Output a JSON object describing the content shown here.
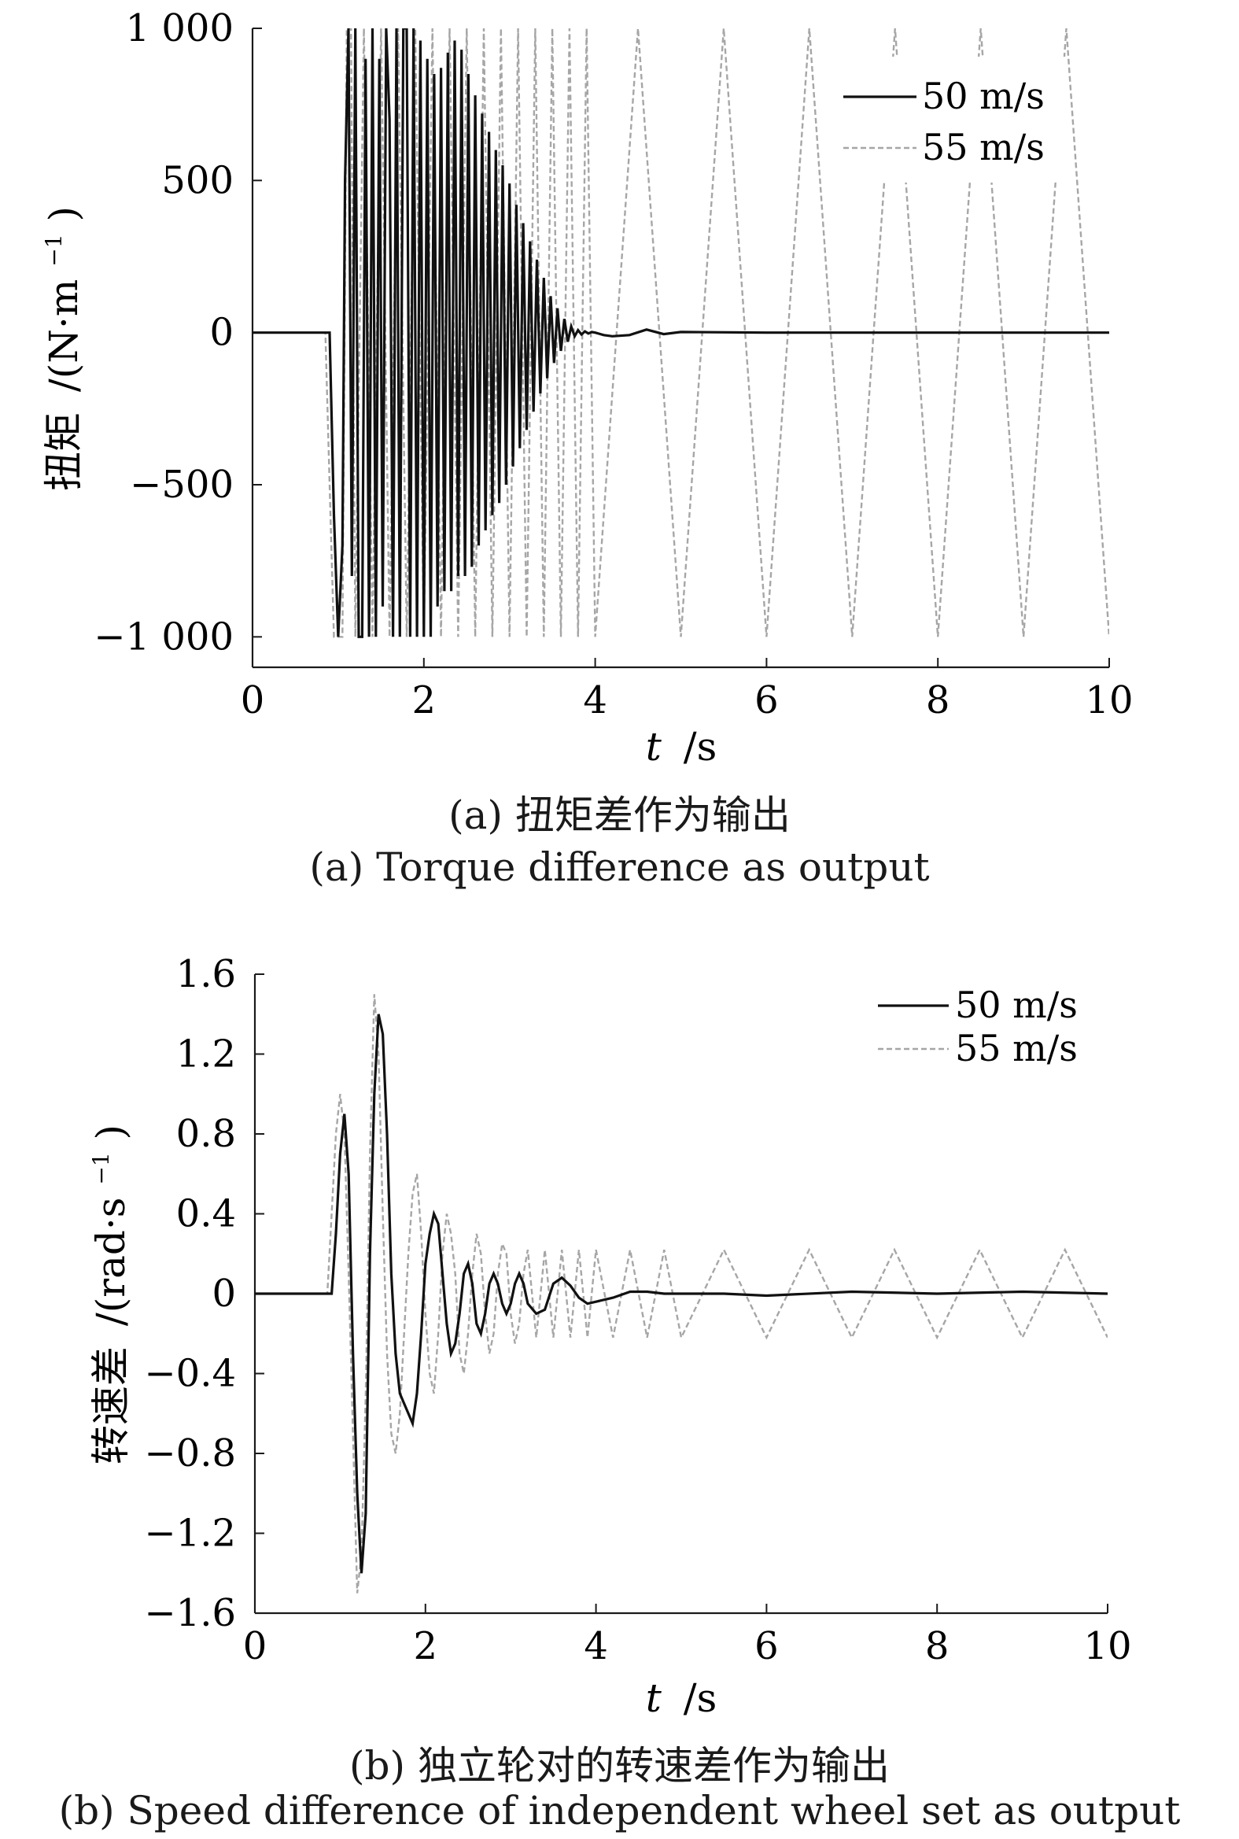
{
  "chart_data": [
    {
      "type": "line",
      "caption_cn": "(a) 扭矩差作为输出",
      "caption_en": "(a) Torque difference as output",
      "xlabel_var": "t",
      "xlabel_unit": "/s",
      "ylabel_cn": "扭矩",
      "ylabel_unit": "/(N·m",
      "ylabel_sup": "−1",
      "ylabel_close": ")",
      "xlim": [
        0,
        10
      ],
      "ylim": [
        -1100,
        1000
      ],
      "xticks": [
        0,
        2,
        4,
        6,
        8,
        10
      ],
      "xtick_labels": [
        "0",
        "2",
        "4",
        "6",
        "8",
        "10"
      ],
      "yticks": [
        1000,
        500,
        0,
        -500,
        -1000
      ],
      "ytick_labels": [
        "1 000",
        "500",
        "0",
        "−500",
        "−1 000"
      ],
      "grid": false,
      "legend_position": "top-right",
      "series": [
        {
          "name": "50 m/s",
          "style": "solid",
          "color": "#111111",
          "x": [
            0,
            0.9,
            0.95,
            1.0,
            1.05,
            1.08,
            1.12,
            1.16,
            1.2,
            1.24,
            1.28,
            1.32,
            1.36,
            1.4,
            1.44,
            1.48,
            1.52,
            1.56,
            1.6,
            1.64,
            1.68,
            1.72,
            1.76,
            1.8,
            1.84,
            1.88,
            1.92,
            1.96,
            2.0,
            2.04,
            2.08,
            2.12,
            2.16,
            2.2,
            2.24,
            2.28,
            2.32,
            2.36,
            2.4,
            2.44,
            2.48,
            2.52,
            2.56,
            2.6,
            2.64,
            2.68,
            2.72,
            2.76,
            2.8,
            2.84,
            2.88,
            2.92,
            2.96,
            3.0,
            3.04,
            3.08,
            3.12,
            3.16,
            3.2,
            3.24,
            3.28,
            3.32,
            3.36,
            3.4,
            3.44,
            3.48,
            3.52,
            3.56,
            3.6,
            3.64,
            3.68,
            3.72,
            3.76,
            3.8,
            3.84,
            3.88,
            3.92,
            3.96,
            4.0,
            4.1,
            4.2,
            4.4,
            4.6,
            4.8,
            5.0,
            6.0,
            8.0,
            10.0
          ],
          "y": [
            0,
            0,
            -600,
            -1000,
            -700,
            500,
            1000,
            -800,
            1000,
            -1000,
            -1000,
            900,
            -1000,
            1000,
            -1000,
            900,
            -900,
            1000,
            700,
            -1000,
            1000,
            -1000,
            1000,
            1000,
            -1000,
            1000,
            -1000,
            960,
            -1000,
            900,
            -1000,
            850,
            -900,
            870,
            -850,
            920,
            -850,
            960,
            -800,
            930,
            -800,
            850,
            -770,
            780,
            -700,
            720,
            -650,
            660,
            -600,
            600,
            -560,
            550,
            -500,
            490,
            -440,
            420,
            -380,
            360,
            -320,
            300,
            -260,
            240,
            -200,
            180,
            -150,
            120,
            -100,
            80,
            -60,
            45,
            -30,
            20,
            -12,
            8,
            -6,
            4,
            -3,
            2,
            0,
            -8,
            -12,
            -8,
            10,
            -5,
            2,
            0,
            0,
            0
          ]
        },
        {
          "name": "55 m/s",
          "style": "dashed",
          "color": "#a6a6a6",
          "x": [
            0,
            0.85,
            0.9,
            0.95,
            1.05,
            1.1,
            1.15,
            1.2,
            1.3,
            1.4,
            1.5,
            1.6,
            1.7,
            1.8,
            1.9,
            2.0,
            2.1,
            2.2,
            2.3,
            2.4,
            2.5,
            2.6,
            2.7,
            2.8,
            2.9,
            3.0,
            3.1,
            3.2,
            3.3,
            3.4,
            3.5,
            3.6,
            3.7,
            3.8,
            3.9,
            4.0,
            4.5,
            5.0,
            5.5,
            6.0,
            6.5,
            7.0,
            7.5,
            8.0,
            8.5,
            9.0,
            9.5,
            10.0
          ],
          "y": [
            0,
            0,
            -500,
            -1000,
            -1000,
            1000,
            1000,
            -1000,
            1000,
            -1000,
            1000,
            -1000,
            1000,
            -1000,
            1000,
            -1000,
            1000,
            -1000,
            1000,
            -1000,
            1000,
            -1000,
            1000,
            -1000,
            1000,
            -1000,
            1000,
            -1000,
            1000,
            -1000,
            1000,
            -1000,
            1000,
            -1000,
            1000,
            -1000,
            1000,
            -1000,
            1000,
            -1000,
            1000,
            -1000,
            1000,
            -1000,
            1000,
            -1000,
            1000,
            -1000
          ]
        }
      ]
    },
    {
      "type": "line",
      "caption_cn": "(b) 独立轮对的转速差作为输出",
      "caption_en": "(b) Speed difference of independent wheel set as output",
      "xlabel_var": "t",
      "xlabel_unit": "/s",
      "ylabel_cn": "转速差",
      "ylabel_unit": "/(rad·s",
      "ylabel_sup": "−1",
      "ylabel_close": ")",
      "xlim": [
        0,
        10
      ],
      "ylim": [
        -1.6,
        1.6
      ],
      "xticks": [
        0,
        2,
        4,
        6,
        8,
        10
      ],
      "xtick_labels": [
        "0",
        "2",
        "4",
        "6",
        "8",
        "10"
      ],
      "yticks": [
        1.6,
        1.2,
        0.8,
        0.4,
        0,
        -0.4,
        -0.8,
        -1.2,
        -1.6
      ],
      "ytick_labels": [
        "1.6",
        "1.2",
        "0.8",
        "0.4",
        "0",
        "−0.4",
        "−0.8",
        "−1.2",
        "−1.6"
      ],
      "grid": false,
      "legend_position": "top-right",
      "series": [
        {
          "name": "50 m/s",
          "style": "solid",
          "color": "#111111",
          "x": [
            0,
            0.9,
            0.95,
            1.0,
            1.05,
            1.1,
            1.15,
            1.2,
            1.25,
            1.3,
            1.35,
            1.4,
            1.45,
            1.5,
            1.55,
            1.6,
            1.65,
            1.7,
            1.75,
            1.8,
            1.85,
            1.9,
            1.95,
            2.0,
            2.05,
            2.1,
            2.15,
            2.2,
            2.25,
            2.3,
            2.35,
            2.4,
            2.45,
            2.5,
            2.55,
            2.6,
            2.65,
            2.7,
            2.75,
            2.8,
            2.85,
            2.9,
            2.95,
            3.0,
            3.05,
            3.1,
            3.15,
            3.2,
            3.3,
            3.4,
            3.5,
            3.6,
            3.7,
            3.8,
            3.9,
            4.0,
            4.2,
            4.4,
            4.6,
            4.8,
            5.0,
            5.5,
            6.0,
            7.0,
            8.0,
            9.0,
            10.0
          ],
          "y": [
            0,
            0,
            0.3,
            0.7,
            0.9,
            0.6,
            -0.3,
            -1.0,
            -1.4,
            -1.1,
            0.2,
            1.0,
            1.4,
            1.3,
            0.8,
            0.1,
            -0.3,
            -0.5,
            -0.55,
            -0.6,
            -0.65,
            -0.5,
            -0.2,
            0.15,
            0.3,
            0.4,
            0.35,
            0.1,
            -0.15,
            -0.3,
            -0.25,
            -0.1,
            0.1,
            0.15,
            0.05,
            -0.15,
            -0.2,
            -0.1,
            0.05,
            0.1,
            0.05,
            -0.05,
            -0.1,
            -0.05,
            0.05,
            0.1,
            0.05,
            -0.05,
            -0.1,
            -0.08,
            0.05,
            0.08,
            0.04,
            -0.02,
            -0.05,
            -0.04,
            -0.02,
            0.01,
            0.01,
            0.0,
            0.0,
            0.0,
            -0.01,
            0.01,
            0.0,
            0.01,
            0.0
          ]
        },
        {
          "name": "55 m/s",
          "style": "dashed",
          "color": "#a6a6a6",
          "x": [
            0,
            0.85,
            0.9,
            0.95,
            1.0,
            1.05,
            1.1,
            1.15,
            1.2,
            1.25,
            1.3,
            1.35,
            1.4,
            1.45,
            1.5,
            1.55,
            1.6,
            1.65,
            1.7,
            1.75,
            1.8,
            1.85,
            1.9,
            1.95,
            2.0,
            2.05,
            2.1,
            2.15,
            2.2,
            2.25,
            2.3,
            2.35,
            2.4,
            2.45,
            2.5,
            2.55,
            2.6,
            2.65,
            2.7,
            2.75,
            2.8,
            2.85,
            2.9,
            2.95,
            3.0,
            3.05,
            3.1,
            3.15,
            3.2,
            3.3,
            3.4,
            3.5,
            3.6,
            3.7,
            3.8,
            3.9,
            4.0,
            4.2,
            4.4,
            4.6,
            4.8,
            5.0,
            5.5,
            6.0,
            6.5,
            7.0,
            7.5,
            8.0,
            8.5,
            9.0,
            9.5,
            10.0
          ],
          "y": [
            0,
            0,
            0.4,
            0.8,
            1.0,
            0.8,
            0.1,
            -0.7,
            -1.5,
            -1.3,
            -0.5,
            0.7,
            1.5,
            1.2,
            0.4,
            -0.3,
            -0.7,
            -0.8,
            -0.6,
            -0.2,
            0.2,
            0.5,
            0.6,
            0.3,
            -0.1,
            -0.4,
            -0.5,
            -0.2,
            0.2,
            0.4,
            0.3,
            0.1,
            -0.3,
            -0.4,
            -0.2,
            0.1,
            0.3,
            0.2,
            -0.1,
            -0.3,
            -0.2,
            0.1,
            0.25,
            0.2,
            -0.1,
            -0.25,
            -0.15,
            0.1,
            0.22,
            -0.22,
            0.22,
            -0.22,
            0.22,
            -0.22,
            0.22,
            -0.22,
            0.22,
            -0.22,
            0.22,
            -0.22,
            0.22,
            -0.22,
            0.22,
            -0.22,
            0.22,
            -0.22,
            0.22,
            -0.22,
            0.22,
            -0.22,
            0.22,
            -0.22
          ]
        }
      ]
    }
  ]
}
